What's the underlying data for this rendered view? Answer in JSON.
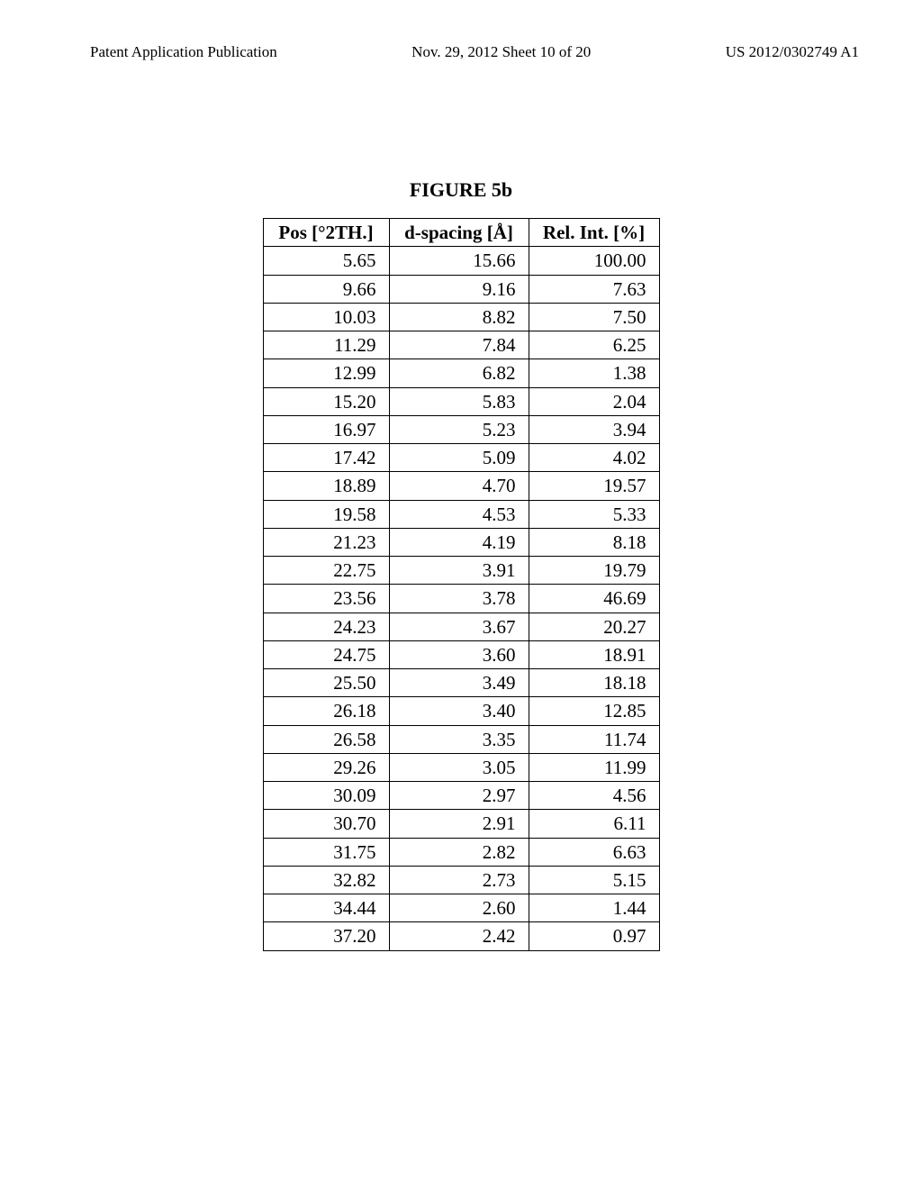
{
  "header": {
    "left": "Patent Application Publication",
    "center": "Nov. 29, 2012  Sheet 10 of 20",
    "right": "US 2012/0302749 A1"
  },
  "figure": {
    "title": "FIGURE 5b"
  },
  "table": {
    "columns": [
      "Pos [°2TH.]",
      "d-spacing [Å]",
      "Rel. Int. [%]"
    ],
    "rows": [
      [
        "5.65",
        "15.66",
        "100.00"
      ],
      [
        "9.66",
        "9.16",
        "7.63"
      ],
      [
        "10.03",
        "8.82",
        "7.50"
      ],
      [
        "11.29",
        "7.84",
        "6.25"
      ],
      [
        "12.99",
        "6.82",
        "1.38"
      ],
      [
        "15.20",
        "5.83",
        "2.04"
      ],
      [
        "16.97",
        "5.23",
        "3.94"
      ],
      [
        "17.42",
        "5.09",
        "4.02"
      ],
      [
        "18.89",
        "4.70",
        "19.57"
      ],
      [
        "19.58",
        "4.53",
        "5.33"
      ],
      [
        "21.23",
        "4.19",
        "8.18"
      ],
      [
        "22.75",
        "3.91",
        "19.79"
      ],
      [
        "23.56",
        "3.78",
        "46.69"
      ],
      [
        "24.23",
        "3.67",
        "20.27"
      ],
      [
        "24.75",
        "3.60",
        "18.91"
      ],
      [
        "25.50",
        "3.49",
        "18.18"
      ],
      [
        "26.18",
        "3.40",
        "12.85"
      ],
      [
        "26.58",
        "3.35",
        "11.74"
      ],
      [
        "29.26",
        "3.05",
        "11.99"
      ],
      [
        "30.09",
        "2.97",
        "4.56"
      ],
      [
        "30.70",
        "2.91",
        "6.11"
      ],
      [
        "31.75",
        "2.82",
        "6.63"
      ],
      [
        "32.82",
        "2.73",
        "5.15"
      ],
      [
        "34.44",
        "2.60",
        "1.44"
      ],
      [
        "37.20",
        "2.42",
        "0.97"
      ]
    ]
  },
  "styling": {
    "background_color": "#ffffff",
    "text_color": "#000000",
    "border_color": "#000000",
    "header_fontsize": 17,
    "title_fontsize": 22,
    "table_fontsize": 21,
    "font_family": "Times New Roman"
  }
}
